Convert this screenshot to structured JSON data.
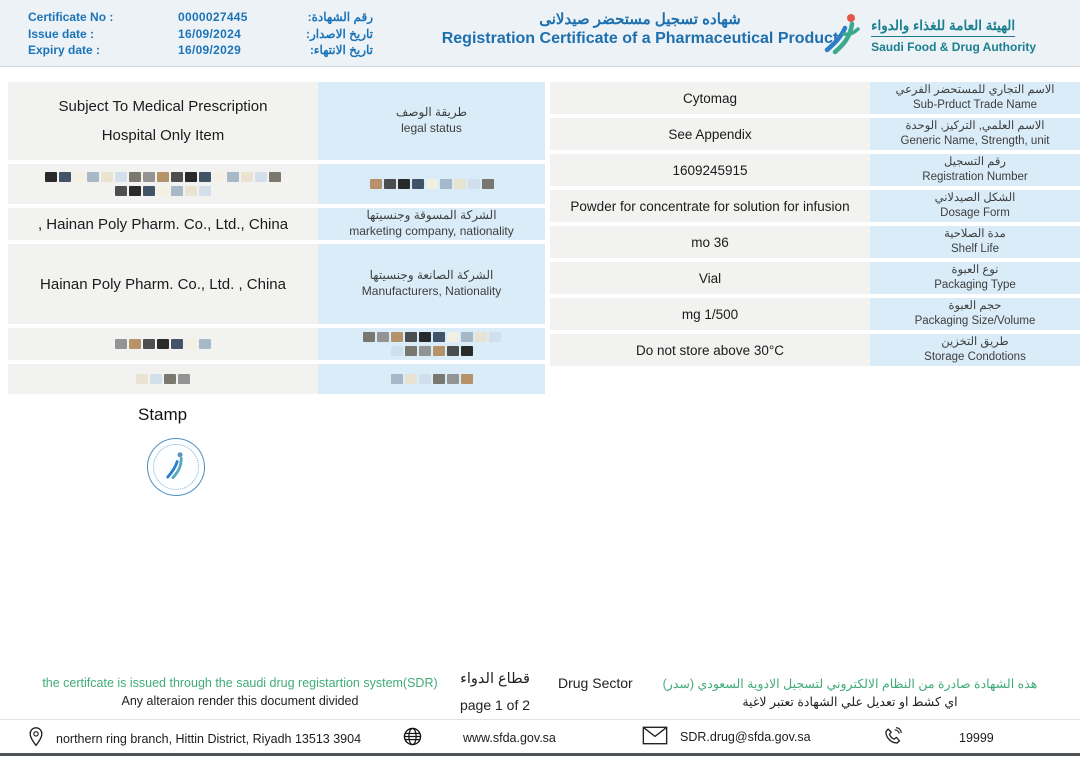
{
  "header": {
    "meta": [
      {
        "label_en": "Certificate No :",
        "value": "0000027445",
        "label_ar": "رقم الشهادة:"
      },
      {
        "label_en": "Issue date :",
        "value": "16/09/2024",
        "label_ar": "تاريخ الاصدار:"
      },
      {
        "label_en": "Expiry date :",
        "value": "16/09/2029",
        "label_ar": "تاريخ الانتهاء:"
      }
    ],
    "title_ar": "شهاده تسجيل مستحضر صيدلانى",
    "title_en": "Registration Certificate of a Pharmaceutical Product",
    "logo": {
      "name_ar": "الهيئة العامة للغذاء والدواء",
      "name_en": "Saudi Food & Drug Authority"
    }
  },
  "left_fields": {
    "legal_status": {
      "value_line1": "Subject To Medical Prescription",
      "value_line2": "Hospital Only Item",
      "label_ar": "طريقة الوصف",
      "label_en": "legal status"
    },
    "marketing_company": {
      "value": ", Hainan Poly Pharm. Co., Ltd., China",
      "label_ar": "الشركة المسوقة وجنسيتها",
      "label_en": "marketing company, nationality"
    },
    "manufacturer": {
      "value": "Hainan Poly Pharm. Co., Ltd. , China",
      "label_ar": "الشركة الصانعة وجنسيتها",
      "label_en": "Manufacturers, Nationality"
    }
  },
  "right_fields": [
    {
      "value": "Cytomag",
      "label_ar": "الاسم التجاري للمستحضر الفرعي",
      "label_en": "Sub-Prduct Trade Name"
    },
    {
      "value": "See Appendix",
      "label_ar": "الاسم العلمي, التركيز, الوحدة",
      "label_en": "Generic Name, Strength, unit"
    },
    {
      "value": "1609245915",
      "label_ar": "رقم التسجيل",
      "label_en": "Registration Number"
    },
    {
      "value": "Powder for concentrate for solution for infusion",
      "label_ar": "الشكل الصيدلاني",
      "label_en": "Dosage Form"
    },
    {
      "value": "mo 36",
      "label_ar": "مدة الصلاحية",
      "label_en": "Shelf Life"
    },
    {
      "value": "Vial",
      "label_ar": "نوع العبوة",
      "label_en": "Packaging Type"
    },
    {
      "value": "mg 1/500",
      "label_ar": "حجم العبوة",
      "label_en": "Packaging Size/Volume"
    },
    {
      "value": "Do not store above 30°C",
      "label_ar": "طريق التخزين",
      "label_en": "Storage Condotions"
    }
  ],
  "stamp": {
    "label": "Stamp"
  },
  "notes": {
    "en_green": "the certifcate is issued through the saudi drug registartion system(SDR)",
    "en_black": "Any alteraion render this document divided",
    "sector_ar": "قطاع الدواء",
    "page": "page 1 of 2",
    "sector_en": "Drug Sector",
    "ar_green": "هذه الشهادة صادرة من النظام الالكتروني لتسجيل الادوية السعودي (سدر)",
    "ar_black": "اي كشط او تعديل علي الشهادة تعتبر لاغية"
  },
  "footer": {
    "address": "northern ring branch, Hittin District, Riyadh 13513 3904",
    "website": "www.sfda.gov.sa",
    "email": "SDR.drug@sfda.gov.sa",
    "phone": "19999"
  },
  "colors": {
    "accent_blue": "#1c74b8",
    "logo_teal": "#1b7f8f",
    "note_green": "#41ab78",
    "label_bg": "#d9ecf8",
    "value_bg": "#f2f2f0",
    "header_bg": "#edf2f7"
  }
}
